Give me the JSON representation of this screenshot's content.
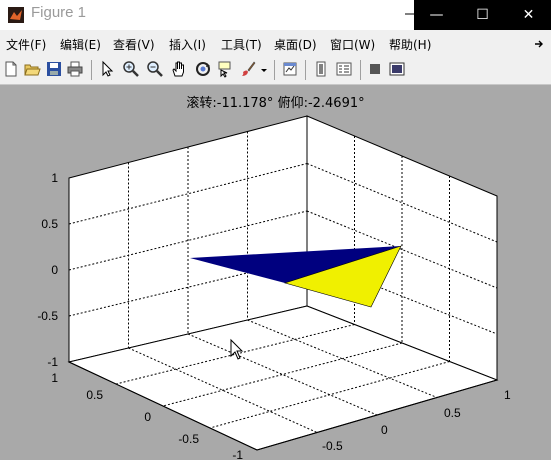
{
  "window": {
    "title": "Figure 1",
    "controls": {
      "minimize": "—",
      "maximize": "☐",
      "close": "✕"
    }
  },
  "menu": [
    "文件(F)",
    "编辑(E)",
    "查看(V)",
    "插入(I)",
    "工具(T)",
    "桌面(D)",
    "窗口(W)",
    "帮助(H)"
  ],
  "toolbar": {
    "buttons": [
      "new-figure-icon",
      "open-file-icon",
      "save-icon",
      "print-icon",
      "pointer-icon",
      "zoom-in-icon",
      "zoom-out-icon",
      "pan-hand-icon",
      "rotate-3d-icon",
      "data-cursor-icon",
      "brush-icon",
      "brush-dropdown-icon",
      "link-plot-icon",
      "colorbar-icon",
      "legend-icon",
      "hide-plot-tools-icon",
      "show-plot-tools-icon"
    ]
  },
  "axes": {
    "title": "滚转:-11.178°  俯仰:-2.4691°",
    "z_ticks": [
      "1",
      "0.5",
      "0",
      "-0.5",
      "-1"
    ],
    "left_ticks": [
      "1",
      "0.5",
      "0",
      "-0.5",
      "-1"
    ],
    "right_ticks": [
      "1",
      "0.5",
      "0",
      "-0.5"
    ],
    "colors": {
      "face_blue": "#00007f",
      "face_yellow": "#f0f000",
      "grid": "#000000",
      "background": "#ffffff"
    }
  }
}
